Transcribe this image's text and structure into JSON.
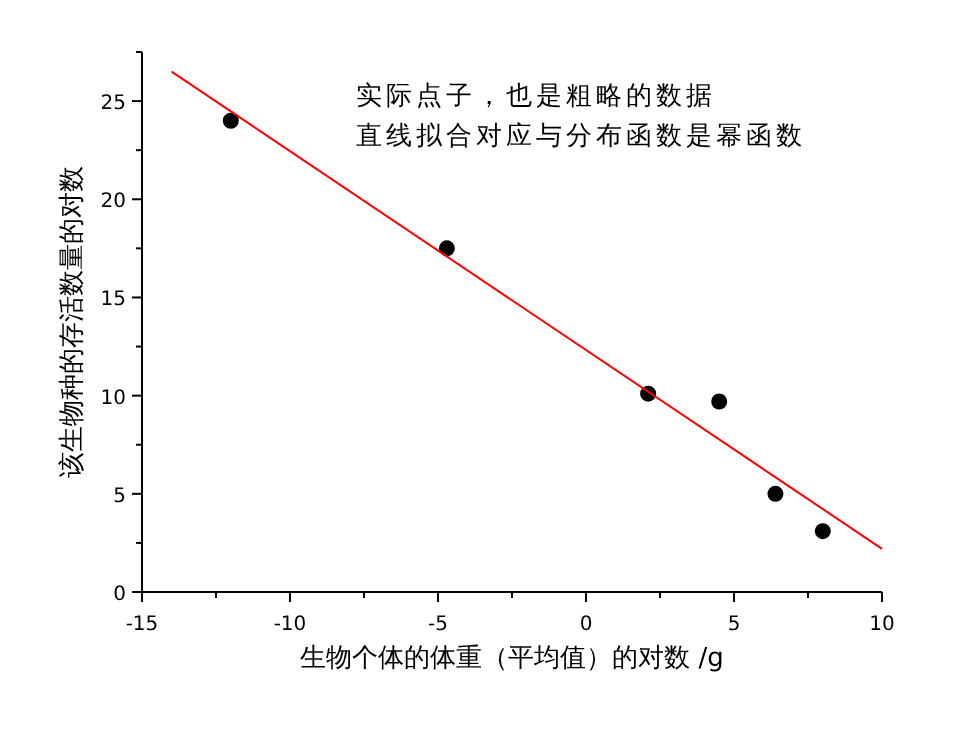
{
  "chart_data": {
    "type": "scatter",
    "xlabel": "生物个体的体重（平均值）的对数 /g",
    "ylabel": "该生物种的存活数量的对数",
    "annotations": [
      "实际点子，也是粗略的数据",
      "直线拟合对应与分布函数是幂函数"
    ],
    "xlim": [
      -15,
      10
    ],
    "xticks": [
      -15,
      -10,
      -5,
      0,
      5,
      10
    ],
    "ylim": [
      0,
      27.5
    ],
    "yticks": [
      0,
      5,
      10,
      15,
      20,
      25
    ],
    "series": [
      {
        "color": "#000000",
        "marker": "circle",
        "x": [
          -12,
          -4.7,
          2.1,
          4.5,
          6.4,
          8
        ],
        "values": [
          24,
          17.5,
          10.1,
          9.7,
          5.0,
          3.1
        ]
      },
      {
        "type": "line",
        "color": "#ff0000",
        "marker": "none",
        "x": [
          -14,
          10
        ],
        "values": [
          26.5,
          2.2
        ]
      }
    ]
  }
}
